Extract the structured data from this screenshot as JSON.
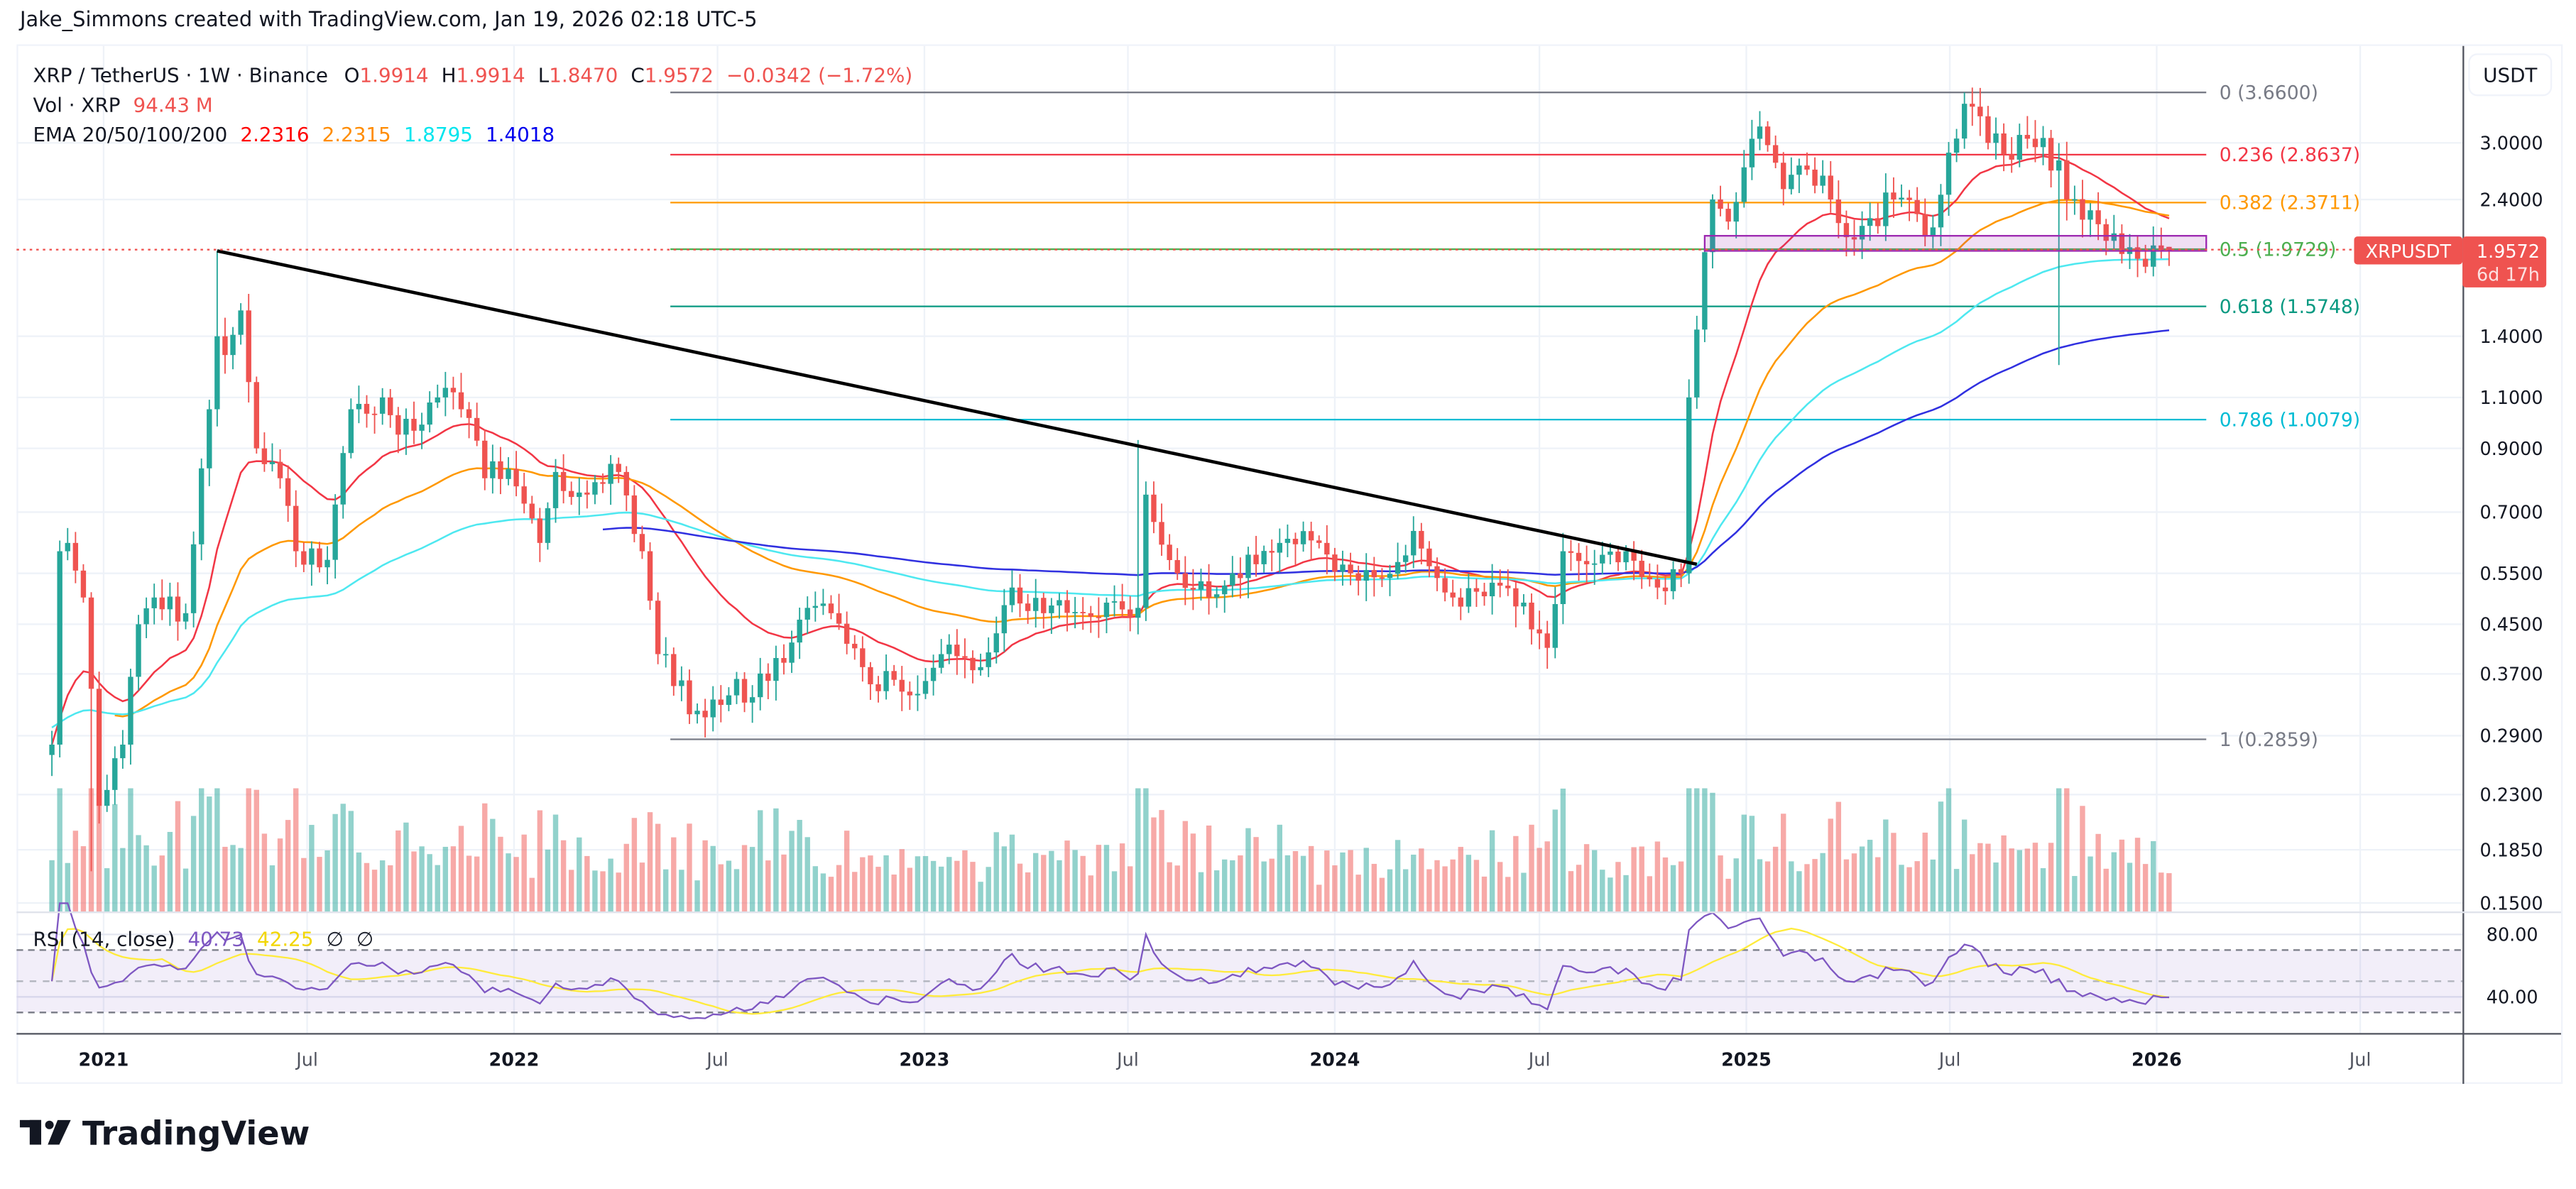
{
  "attribution": "Jake_Simmons created with TradingView.com, Jan 19, 2026 02:18 UTC-5",
  "logo_text": "TradingView",
  "legend": {
    "symbol": "XRP / TetherUS · 1W · Binance",
    "open_label": "O",
    "open": "1.9914",
    "high_label": "H",
    "high": "1.9914",
    "low_label": "L",
    "low": "1.8470",
    "close_label": "C",
    "close": "1.9572",
    "change": "−0.0342 (−1.72%)",
    "vol_label": "Vol · XRP",
    "vol": "94.43 M",
    "ema_label": "EMA 20/50/100/200",
    "ema20": "2.2316",
    "ema50": "2.2315",
    "ema100": "1.8795",
    "ema200": "1.4018",
    "rsi_label": "RSI (14, close)",
    "rsi": "40.73",
    "rsi_ma": "42.25",
    "rsi_na1": "∅",
    "rsi_na2": "∅"
  },
  "currency_button": "USDT",
  "price_tag": {
    "symbol": "XRPUSDT",
    "price": "1.9572",
    "countdown": "6d 17h"
  },
  "colors": {
    "up": "#26a69a",
    "down": "#ef5350",
    "ema20": "#f23645",
    "ema50": "#ff9800",
    "ema100": "#4ee8f0",
    "ema200": "#3030e0",
    "rsi": "#7e57c2",
    "rsi_ma": "#ffeb3b"
  },
  "chart_data": {
    "type": "candlestick",
    "scale": "log",
    "interval": "1W",
    "price_ticks": [
      "3.0000",
      "2.4000",
      "1.4000",
      "1.1000",
      "0.9000",
      "0.7000",
      "0.5500",
      "0.4500",
      "0.3700",
      "0.2900",
      "0.2300",
      "0.1850",
      "0.1500"
    ],
    "rsi_ticks": [
      "80.00",
      "40.00"
    ],
    "time_ticks": [
      {
        "label": "2021",
        "date": "2021-01-01",
        "bold": true
      },
      {
        "label": "Jul",
        "date": "2021-07-01"
      },
      {
        "label": "2022",
        "date": "2022-01-01",
        "bold": true
      },
      {
        "label": "Jul",
        "date": "2022-07-01"
      },
      {
        "label": "2023",
        "date": "2023-01-01",
        "bold": true
      },
      {
        "label": "Jul",
        "date": "2023-07-01"
      },
      {
        "label": "2024",
        "date": "2024-01-01",
        "bold": true
      },
      {
        "label": "Jul",
        "date": "2024-07-01"
      },
      {
        "label": "2025",
        "date": "2025-01-01",
        "bold": true
      },
      {
        "label": "Jul",
        "date": "2025-07-01"
      },
      {
        "label": "2026",
        "date": "2026-01-01",
        "bold": true
      },
      {
        "label": "Jul",
        "date": "2026-07-01"
      }
    ],
    "first_week": "2020-11-16",
    "close_path": [
      [
        "2020-11-16",
        0.28
      ],
      [
        "2020-11-23",
        0.6
      ],
      [
        "2020-11-30",
        0.62
      ],
      [
        "2020-12-14",
        0.5
      ],
      [
        "2020-12-28",
        0.22
      ],
      [
        "2021-01-18",
        0.28
      ],
      [
        "2021-02-01",
        0.45
      ],
      [
        "2021-02-15",
        0.5
      ],
      [
        "2021-03-15",
        0.47
      ],
      [
        "2021-04-05",
        1.05
      ],
      [
        "2021-04-12",
        1.4
      ],
      [
        "2021-04-19",
        1.3
      ],
      [
        "2021-05-03",
        1.55
      ],
      [
        "2021-05-17",
        0.9
      ],
      [
        "2021-06-07",
        0.8
      ],
      [
        "2021-06-21",
        0.6
      ],
      [
        "2021-07-19",
        0.58
      ],
      [
        "2021-08-09",
        1.05
      ],
      [
        "2021-09-06",
        1.1
      ],
      [
        "2021-09-20",
        0.95
      ],
      [
        "2021-10-25",
        1.1
      ],
      [
        "2021-11-15",
        1.05
      ],
      [
        "2021-12-06",
        0.8
      ],
      [
        "2021-12-27",
        0.83
      ],
      [
        "2022-01-24",
        0.62
      ],
      [
        "2022-02-07",
        0.82
      ],
      [
        "2022-03-07",
        0.75
      ],
      [
        "2022-04-04",
        0.82
      ],
      [
        "2022-04-25",
        0.6
      ],
      [
        "2022-05-09",
        0.4
      ],
      [
        "2022-06-13",
        0.32
      ],
      [
        "2022-07-11",
        0.34
      ],
      [
        "2022-08-15",
        0.36
      ],
      [
        "2022-09-19",
        0.48
      ],
      [
        "2022-10-10",
        0.47
      ],
      [
        "2022-11-07",
        0.38
      ],
      [
        "2022-12-19",
        0.34
      ],
      [
        "2023-01-16",
        0.4
      ],
      [
        "2023-02-20",
        0.38
      ],
      [
        "2023-03-20",
        0.52
      ],
      [
        "2023-04-17",
        0.47
      ],
      [
        "2023-05-22",
        0.47
      ],
      [
        "2023-06-12",
        0.49
      ],
      [
        "2023-07-10",
        0.48
      ],
      [
        "2023-07-17",
        0.75
      ],
      [
        "2023-08-14",
        0.55
      ],
      [
        "2023-09-11",
        0.5
      ],
      [
        "2023-10-23",
        0.57
      ],
      [
        "2023-11-13",
        0.62
      ],
      [
        "2023-12-18",
        0.62
      ],
      [
        "2024-01-15",
        0.55
      ],
      [
        "2024-02-12",
        0.54
      ],
      [
        "2024-03-11",
        0.65
      ],
      [
        "2024-04-15",
        0.5
      ],
      [
        "2024-05-20",
        0.53
      ],
      [
        "2024-06-17",
        0.49
      ],
      [
        "2024-07-08",
        0.41
      ],
      [
        "2024-07-22",
        0.6
      ],
      [
        "2024-08-12",
        0.57
      ],
      [
        "2024-09-16",
        0.6
      ],
      [
        "2024-10-14",
        0.52
      ],
      [
        "2024-11-04",
        0.55
      ],
      [
        "2024-11-11",
        1.1
      ],
      [
        "2024-11-25",
        1.95
      ],
      [
        "2024-12-02",
        2.4
      ],
      [
        "2024-12-16",
        2.2
      ],
      [
        "2025-01-13",
        3.2
      ],
      [
        "2025-02-03",
        2.5
      ],
      [
        "2025-02-24",
        2.7
      ],
      [
        "2025-03-17",
        2.4
      ],
      [
        "2025-04-07",
        2.05
      ],
      [
        "2025-05-12",
        2.4
      ],
      [
        "2025-06-16",
        2.15
      ],
      [
        "2025-07-14",
        3.5
      ],
      [
        "2025-08-04",
        3.0
      ],
      [
        "2025-09-15",
        2.95
      ],
      [
        "2025-10-06",
        2.8
      ],
      [
        "2025-10-13",
        2.4
      ],
      [
        "2025-11-03",
        2.3
      ],
      [
        "2025-11-24",
        2.1
      ],
      [
        "2025-12-15",
        1.9
      ],
      [
        "2026-01-12",
        1.9572
      ]
    ],
    "wick_highs": [
      [
        "2021-04-12",
        1.96
      ],
      [
        "2023-07-10",
        0.93
      ],
      [
        "2025-01-13",
        3.4
      ],
      [
        "2025-07-14",
        3.66
      ]
    ],
    "wick_lows": [
      [
        "2025-10-06",
        1.25
      ],
      [
        "2020-12-21",
        0.17
      ]
    ],
    "last_candle": {
      "open": 1.9914,
      "high": 1.9914,
      "low": 1.847,
      "close": 1.9572
    },
    "fibonacci": [
      {
        "level": "0",
        "price": 3.66,
        "label": "0 (3.6600)",
        "color": "#787b86"
      },
      {
        "level": "0.236",
        "price": 2.8637,
        "label": "0.236 (2.8637)",
        "color": "#f23645"
      },
      {
        "level": "0.382",
        "price": 2.3711,
        "label": "0.382 (2.3711)",
        "color": "#ff9800"
      },
      {
        "level": "0.5",
        "price": 1.9729,
        "label": "0.5 (1.9729)",
        "color": "#4caf50"
      },
      {
        "level": "0.618",
        "price": 1.5748,
        "label": "0.618 (1.5748)",
        "color": "#089981"
      },
      {
        "level": "0.786",
        "price": 1.0079,
        "label": "0.786 (1.0079)",
        "color": "#00bcd4"
      },
      {
        "level": "1",
        "price": 0.2859,
        "label": "1 (0.2859)",
        "color": "#787b86"
      }
    ],
    "trendline": {
      "from": [
        "2021-04-12",
        1.96
      ],
      "to": [
        "2024-11-18",
        0.57
      ]
    },
    "zone": {
      "from": "2024-11-25",
      "to": "2026-03-01",
      "low": 1.96,
      "high": 2.08
    },
    "rsi_bands": {
      "upper": 70,
      "middle": 50,
      "lower": 30
    }
  }
}
